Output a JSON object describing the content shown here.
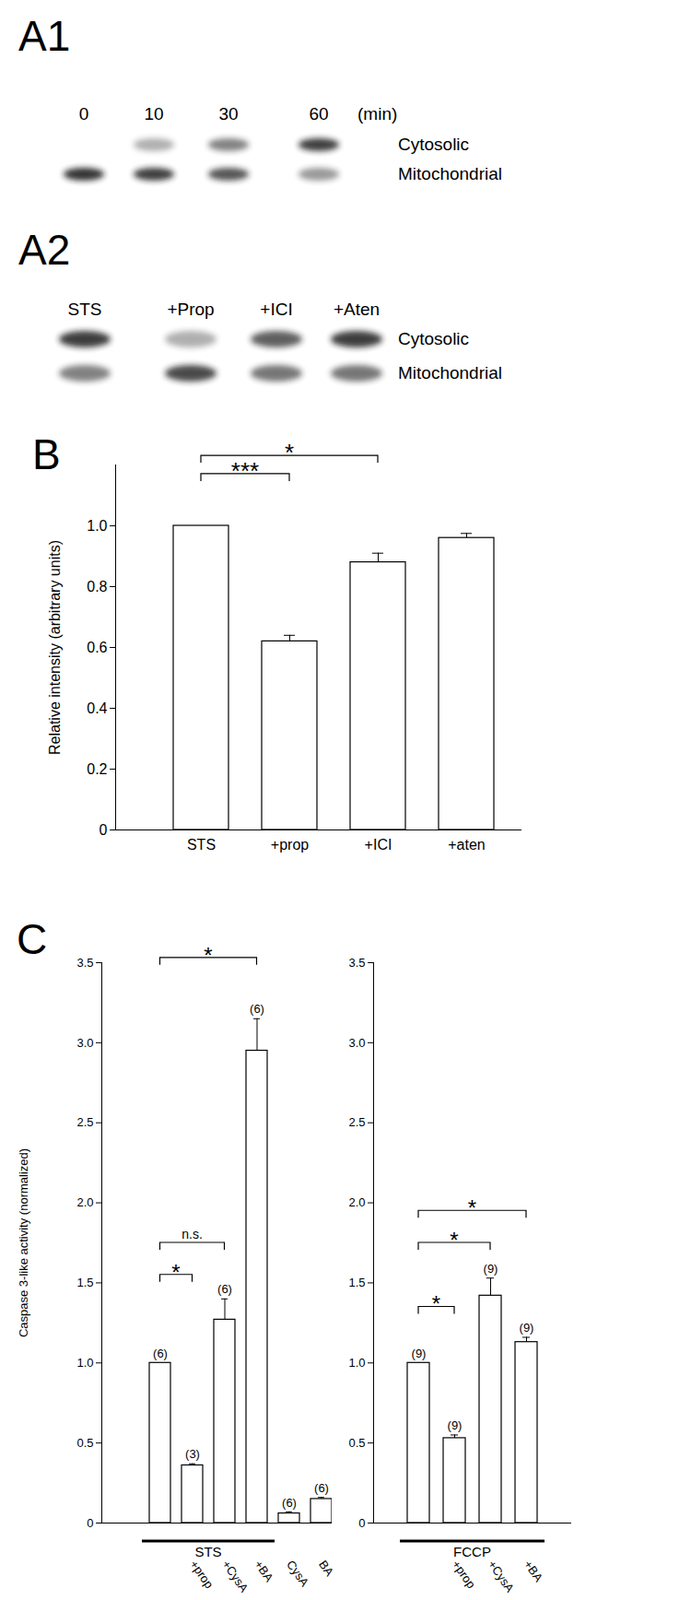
{
  "blots": [
    {
      "label": "A1",
      "lanes": [
        "0",
        "10",
        "30",
        "60"
      ],
      "lane_unit": "(min)",
      "rows": [
        {
          "name": "Cytosolic",
          "intensity": [
            0,
            0.35,
            0.55,
            0.85
          ]
        },
        {
          "name": "Mitochondrial",
          "intensity": [
            0.9,
            0.85,
            0.75,
            0.45
          ]
        }
      ]
    },
    {
      "label": "A2",
      "lanes": [
        "STS",
        "+Prop",
        "+ICI",
        "+Aten"
      ],
      "rows": [
        {
          "name": "Cytosolic",
          "intensity": [
            0.85,
            0.35,
            0.7,
            0.85
          ]
        },
        {
          "name": "Mitochondrial",
          "intensity": [
            0.55,
            0.8,
            0.6,
            0.6
          ]
        }
      ]
    }
  ],
  "chart_data": [
    {
      "type": "bar",
      "title": "B",
      "ylabel": "Relative intensity (arbitrary units)",
      "categories": [
        "STS",
        "+prop",
        "+ICI",
        "+aten"
      ],
      "values": [
        1.0,
        0.62,
        0.88,
        0.96
      ],
      "errors": [
        null,
        0.02,
        0.03,
        0.015
      ],
      "color": "#ffffff",
      "ylim": [
        0,
        1.2
      ],
      "yticks": [
        0,
        0.2,
        0.4,
        0.6,
        0.8,
        {
          "value": 1,
          "label": "1.0"
        }
      ],
      "significance": [
        {
          "from": 0,
          "to": 2,
          "y": 1.23,
          "label": "*"
        },
        {
          "from": 0,
          "to": 1,
          "y": 1.17,
          "label": "***"
        }
      ]
    },
    {
      "type": "bar",
      "title": "C",
      "ylabel": "Caspase 3-like activity (normalized)",
      "categories": [
        null,
        "+prop",
        "+CysA",
        "+BA",
        "CysA",
        "BA"
      ],
      "values": [
        1.0,
        0.36,
        1.27,
        2.95,
        0.06,
        0.15
      ],
      "errors": [
        null,
        0.01,
        0.13,
        0.2,
        0.01,
        0.01
      ],
      "n_labels": [
        "(6)",
        "(3)",
        "(6)",
        "(6)",
        "(6)",
        "(6)"
      ],
      "groups": [
        {
          "label": "STS",
          "from": 0,
          "to": 3
        }
      ],
      "color": "#ffffff",
      "ylim": [
        0,
        3.5
      ],
      "yticks": [
        0,
        0.5,
        {
          "value": 1,
          "label": "1.0"
        },
        1.5,
        {
          "value": 2,
          "label": "2.0"
        },
        2.5,
        {
          "value": 3,
          "label": "3.0"
        },
        3.5
      ],
      "significance": [
        {
          "from": 0,
          "to": 3,
          "y": 3.53,
          "label": "*"
        },
        {
          "from": 0,
          "to": 2,
          "y": 1.75,
          "label": "n.s."
        },
        {
          "from": 0,
          "to": 1,
          "y": 1.55,
          "label": "*"
        }
      ]
    },
    {
      "type": "bar",
      "categories": [
        null,
        "+prop",
        "+CysA",
        "+BA"
      ],
      "values": [
        1.0,
        0.53,
        1.42,
        1.13
      ],
      "errors": [
        null,
        0.02,
        0.11,
        0.03
      ],
      "n_labels": [
        "(9)",
        "(9)",
        "(9)",
        "(9)"
      ],
      "groups": [
        {
          "label": "FCCP",
          "from": 0,
          "to": 3
        }
      ],
      "color": "#ffffff",
      "ylim": [
        0,
        3.5
      ],
      "yticks": [
        0,
        0.5,
        {
          "value": 1,
          "label": "1.0"
        },
        1.5,
        {
          "value": 2,
          "label": "2.0"
        },
        2.5,
        {
          "value": 3,
          "label": "3.0"
        },
        3.5
      ],
      "significance": [
        {
          "from": 0,
          "to": 3,
          "y": 1.95,
          "label": "*"
        },
        {
          "from": 0,
          "to": 2,
          "y": 1.75,
          "label": "*"
        },
        {
          "from": 0,
          "to": 1,
          "y": 1.35,
          "label": "*"
        }
      ]
    }
  ]
}
